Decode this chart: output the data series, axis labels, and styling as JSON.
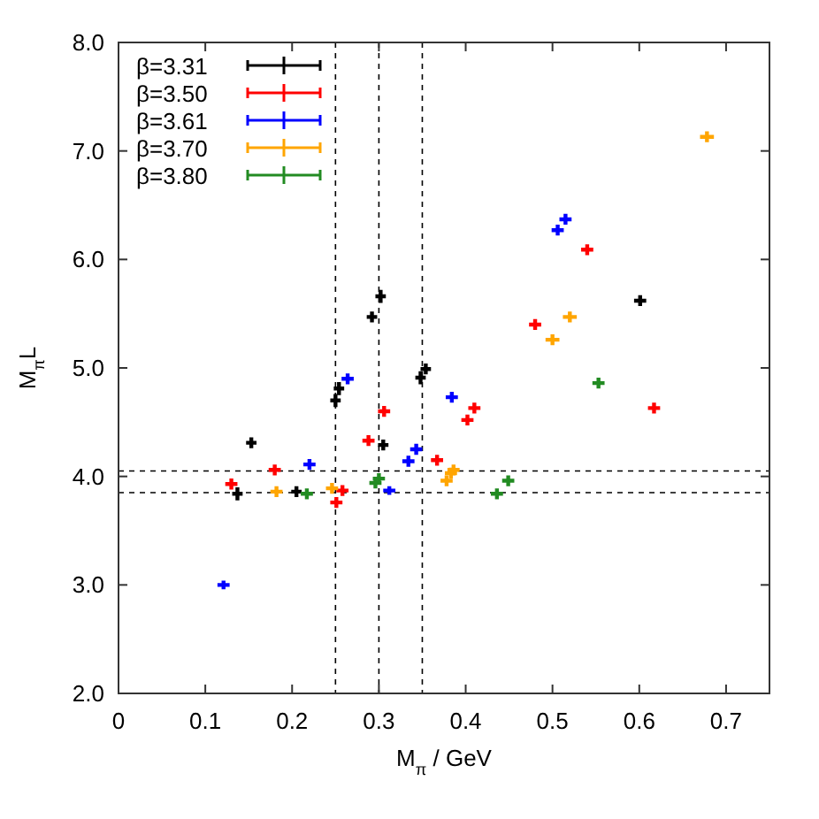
{
  "chart_data": {
    "type": "scatter",
    "xlabel": "M$_{π}$ / GeV",
    "ylabel": "M$_{π}$L",
    "xlim": [
      0,
      0.75
    ],
    "ylim": [
      2,
      8
    ],
    "xticks": [
      0,
      0.1,
      0.2,
      0.3,
      0.4,
      0.5,
      0.6,
      0.7
    ],
    "yticks": [
      {
        "value": 2,
        "label": "2.0"
      },
      {
        "value": 3,
        "label": "3.0"
      },
      {
        "value": 4,
        "label": "4.0"
      },
      {
        "value": 5,
        "label": "5.0"
      },
      {
        "value": 6,
        "label": "6.0"
      },
      {
        "value": 7,
        "label": "7.0"
      },
      {
        "value": 8,
        "label": "8.0"
      }
    ],
    "grid": false,
    "legend": "top left",
    "marker": "cross",
    "ref_lines": [
      {
        "axis": "x",
        "value": 0.25,
        "line_style": "dashed"
      },
      {
        "axis": "x",
        "value": 0.3,
        "line_style": "dashed"
      },
      {
        "axis": "x",
        "value": 0.35,
        "line_style": "dashed"
      },
      {
        "axis": "y",
        "value": 4.05,
        "line_style": "dashed"
      },
      {
        "axis": "y",
        "value": 3.85,
        "line_style": "dashed"
      }
    ],
    "series": [
      {
        "name": "β=3.31",
        "color": "#000000",
        "x": [
          0.137,
          0.153,
          0.205,
          0.25,
          0.254,
          0.292,
          0.302,
          0.305,
          0.348,
          0.354,
          0.601
        ],
        "values": [
          3.84,
          4.31,
          3.86,
          4.7,
          4.81,
          5.47,
          5.66,
          4.29,
          4.91,
          4.99,
          5.62
        ],
        "errors": [
          0.06,
          0.05,
          0.05,
          0.06,
          0.06,
          0.05,
          0.06,
          0.05,
          0.06,
          0.05,
          0.05
        ],
        "xerrors": [
          0.006,
          0.006,
          0.006,
          0.006,
          0.006,
          0.006,
          0.006,
          0.006,
          0.006,
          0.006,
          0.007
        ]
      },
      {
        "name": "β=3.50",
        "color": "#ff0000",
        "x": [
          0.13,
          0.18,
          0.251,
          0.258,
          0.288,
          0.306,
          0.367,
          0.402,
          0.41,
          0.48,
          0.54,
          0.617
        ],
        "values": [
          3.93,
          4.06,
          3.76,
          3.87,
          4.33,
          4.6,
          4.15,
          4.52,
          4.63,
          5.4,
          6.09,
          4.63
        ],
        "errors": [
          0.05,
          0.05,
          0.05,
          0.05,
          0.05,
          0.05,
          0.05,
          0.05,
          0.05,
          0.05,
          0.05,
          0.05
        ],
        "xerrors": [
          0.007,
          0.007,
          0.007,
          0.007,
          0.007,
          0.007,
          0.007,
          0.007,
          0.007,
          0.007,
          0.007,
          0.007
        ]
      },
      {
        "name": "β=3.61",
        "color": "#0000ff",
        "x": [
          0.121,
          0.22,
          0.264,
          0.312,
          0.334,
          0.343,
          0.384,
          0.506,
          0.515
        ],
        "values": [
          3.0,
          4.11,
          4.9,
          3.87,
          4.14,
          4.25,
          4.73,
          6.27,
          6.37
        ],
        "errors": [
          0.04,
          0.05,
          0.05,
          0.04,
          0.05,
          0.05,
          0.05,
          0.05,
          0.05
        ],
        "xerrors": [
          0.007,
          0.007,
          0.007,
          0.007,
          0.007,
          0.007,
          0.007,
          0.007,
          0.007
        ]
      },
      {
        "name": "β=3.70",
        "color": "#ffa500",
        "x": [
          0.182,
          0.246,
          0.378,
          0.383,
          0.386,
          0.5,
          0.52,
          0.678
        ],
        "values": [
          3.86,
          3.89,
          3.96,
          4.03,
          4.06,
          5.26,
          5.47,
          7.13
        ],
        "errors": [
          0.05,
          0.05,
          0.05,
          0.05,
          0.05,
          0.05,
          0.05,
          0.05
        ],
        "xerrors": [
          0.007,
          0.007,
          0.007,
          0.007,
          0.007,
          0.008,
          0.008,
          0.008
        ]
      },
      {
        "name": "β=3.80",
        "color": "#228b22",
        "x": [
          0.217,
          0.296,
          0.3,
          0.436,
          0.449,
          0.553
        ],
        "values": [
          3.84,
          3.94,
          3.98,
          3.84,
          3.96,
          4.86
        ],
        "errors": [
          0.05,
          0.05,
          0.05,
          0.05,
          0.05,
          0.05
        ],
        "xerrors": [
          0.007,
          0.007,
          0.007,
          0.007,
          0.007,
          0.007
        ]
      }
    ]
  }
}
